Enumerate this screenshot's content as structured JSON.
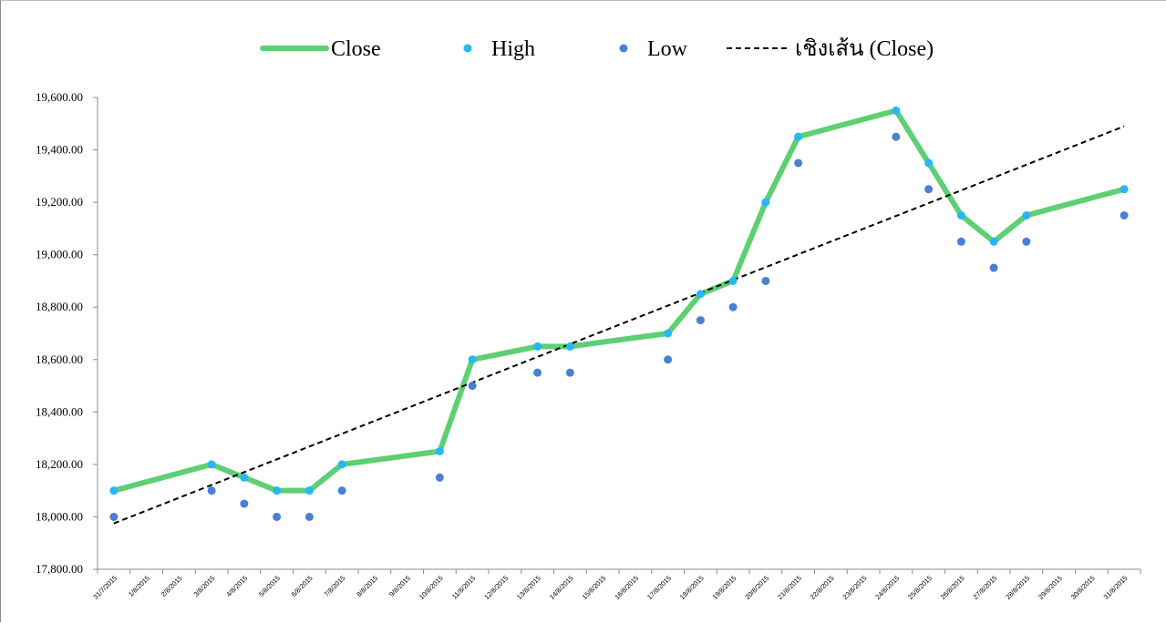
{
  "chart_data": {
    "type": "line",
    "title": "",
    "xlabel": "",
    "ylabel": "",
    "ylim": [
      17800,
      19600
    ],
    "y_ticks": [
      "17,800.00",
      "18,000.00",
      "18,200.00",
      "18,400.00",
      "18,600.00",
      "18,800.00",
      "19,000.00",
      "19,200.00",
      "19,400.00",
      "19,600.00"
    ],
    "y_tick_values": [
      17800,
      18000,
      18200,
      18400,
      18600,
      18800,
      19000,
      19200,
      19400,
      19600
    ],
    "categories": [
      "31/7/2015",
      "1/8/2015",
      "2/8/2015",
      "3/8/2015",
      "4/8/2015",
      "5/8/2015",
      "6/8/2015",
      "7/8/2015",
      "8/8/2015",
      "9/8/2015",
      "10/8/2015",
      "11/8/2015",
      "12/8/2015",
      "13/8/2015",
      "14/8/2015",
      "15/8/2015",
      "16/8/2015",
      "17/8/2015",
      "18/8/2015",
      "19/8/2015",
      "20/8/2015",
      "21/8/2015",
      "22/8/2015",
      "23/8/2015",
      "24/8/2015",
      "25/8/2015",
      "26/8/2015",
      "27/8/2015",
      "28/8/2015",
      "29/8/2015",
      "30/8/2015",
      "31/8/2015"
    ],
    "legend_position": "top",
    "grid": false,
    "series": [
      {
        "name": "Close",
        "kind": "line",
        "color": "#5ecf73",
        "values": [
          18100,
          null,
          null,
          18200,
          18150,
          18100,
          18100,
          18200,
          null,
          null,
          18250,
          18600,
          null,
          18650,
          18650,
          null,
          null,
          18700,
          18850,
          18900,
          19200,
          19450,
          null,
          null,
          19550,
          19350,
          19150,
          19050,
          19150,
          null,
          null,
          19250
        ]
      },
      {
        "name": "High",
        "kind": "marker",
        "color": "#29b6f6",
        "values": [
          18100,
          null,
          null,
          18200,
          18150,
          18100,
          18100,
          18200,
          null,
          null,
          18250,
          18600,
          null,
          18650,
          18650,
          null,
          null,
          18700,
          18850,
          18900,
          19200,
          19450,
          null,
          null,
          19550,
          19350,
          19150,
          19050,
          19150,
          null,
          null,
          19250
        ]
      },
      {
        "name": "Low",
        "kind": "marker",
        "color": "#4a7fd4",
        "values": [
          18000,
          null,
          null,
          18100,
          18050,
          18000,
          18000,
          18100,
          null,
          null,
          18150,
          18500,
          null,
          18550,
          18550,
          null,
          null,
          18600,
          18750,
          18800,
          18900,
          19350,
          null,
          null,
          19450,
          19250,
          19050,
          18950,
          19050,
          null,
          null,
          19150
        ]
      },
      {
        "name": "เชิงเส้น (Close)",
        "kind": "trendline",
        "color": "#000000",
        "values_at_ends": [
          17975,
          19490
        ]
      }
    ]
  }
}
